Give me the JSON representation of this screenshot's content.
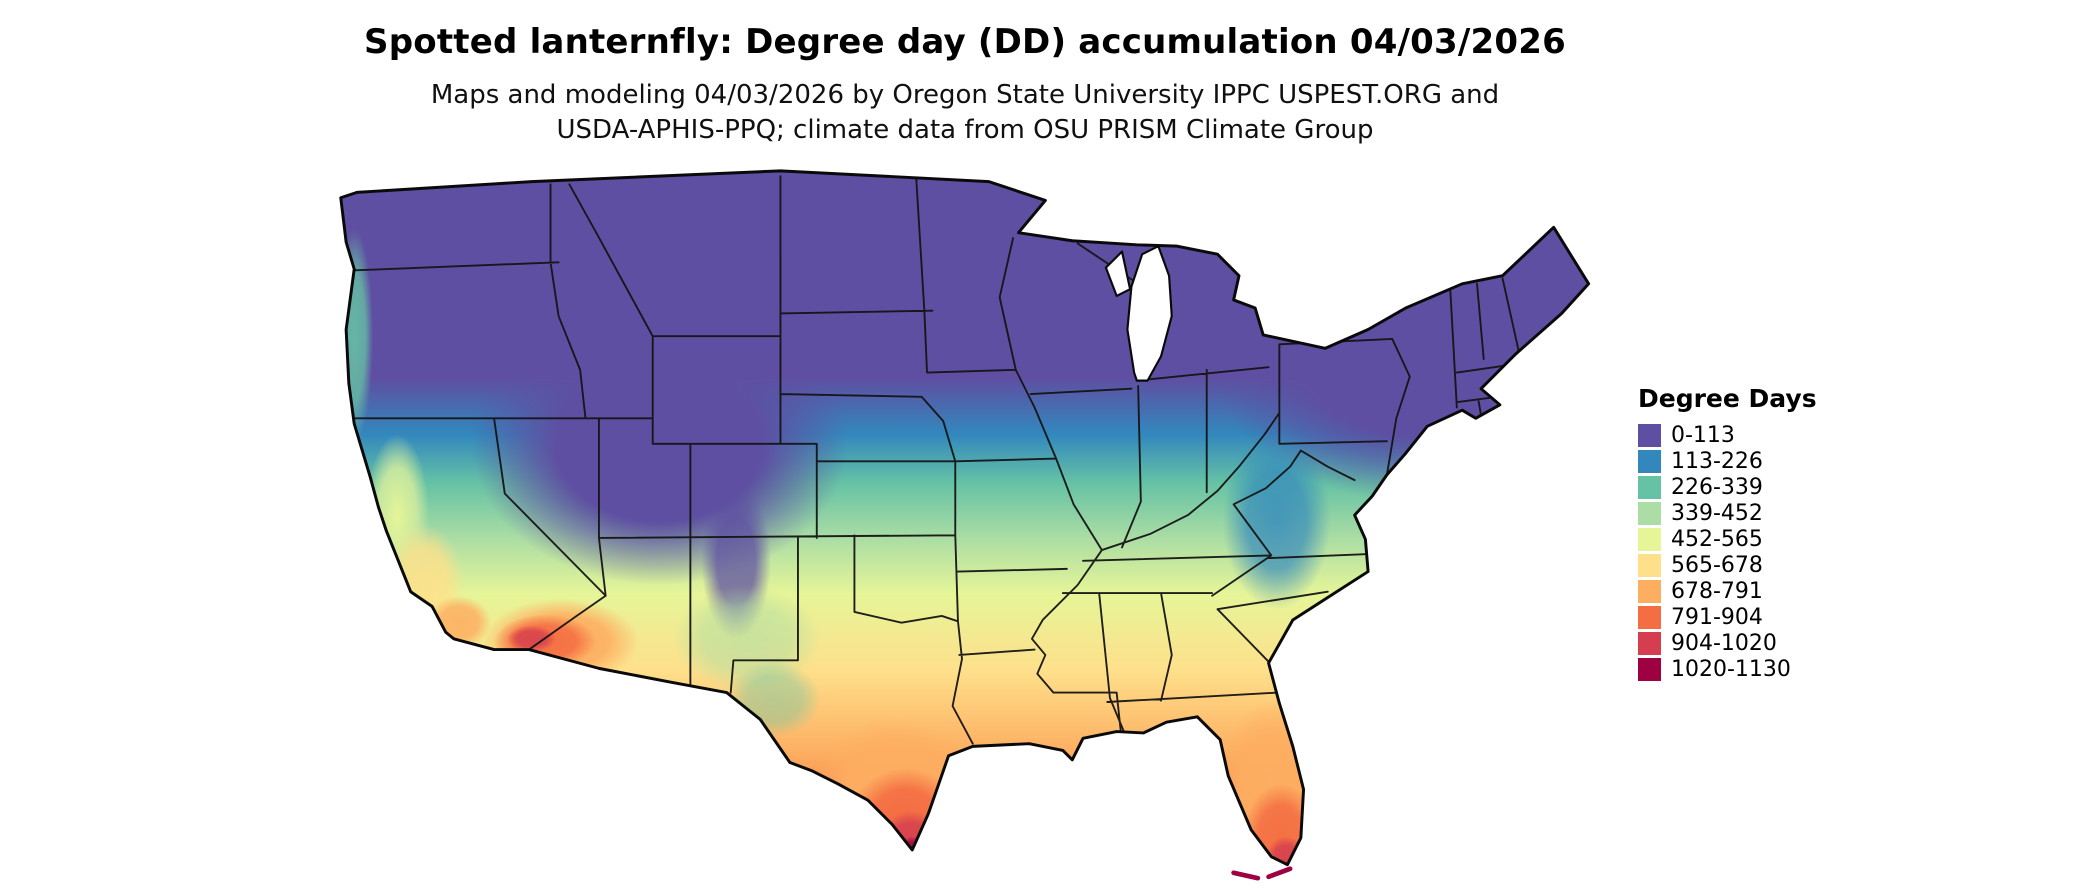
{
  "page": {
    "background": "#ffffff"
  },
  "header": {
    "title": "Spotted lanternfly: Degree day (DD) accumulation 04/03/2026",
    "subtitle_line1": "Maps and modeling 04/03/2026 by Oregon State University IPPC USPEST.ORG and",
    "subtitle_line2": "USDA-APHIS-PPQ; climate data from OSU PRISM Climate Group"
  },
  "map": {
    "region": "Contiguous United States",
    "variable": "Degree day (DD) accumulation",
    "date": "04/03/2026",
    "palette": [
      "#5e4fa2",
      "#3288bd",
      "#66c2a5",
      "#abdda4",
      "#e6f598",
      "#fee08b",
      "#fdae61",
      "#f46d43",
      "#d53e4f",
      "#9e0142"
    ]
  },
  "legend": {
    "title": "Degree Days",
    "items": [
      {
        "label": "0-113",
        "color": "#5e4fa2"
      },
      {
        "label": "113-226",
        "color": "#3288bd"
      },
      {
        "label": "226-339",
        "color": "#66c2a5"
      },
      {
        "label": "339-452",
        "color": "#abdda4"
      },
      {
        "label": "452-565",
        "color": "#e6f598"
      },
      {
        "label": "565-678",
        "color": "#fee08b"
      },
      {
        "label": "678-791",
        "color": "#fdae61"
      },
      {
        "label": "791-904",
        "color": "#f46d43"
      },
      {
        "label": "904-1020",
        "color": "#d53e4f"
      },
      {
        "label": "1020-1130",
        "color": "#9e0142"
      }
    ]
  }
}
